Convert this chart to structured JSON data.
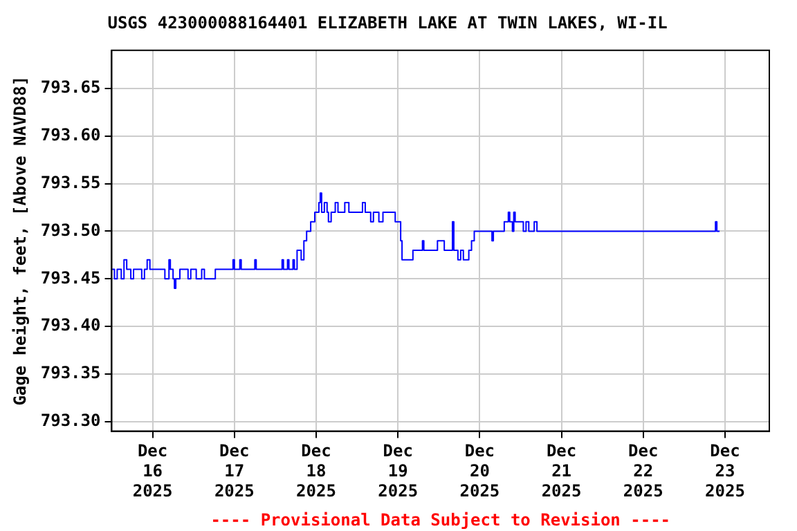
{
  "chart_data": {
    "type": "step",
    "title": "USGS 423000088164401 ELIZABETH LAKE AT TWIN LAKES, WI-IL",
    "ylabel": "Gage height, feet, [Above NAVD88]",
    "annotations": [
      "---- Provisional Data Subject to Revision ----"
    ],
    "x": [
      "2025-12-15T12:00",
      "2025-12-15T12:48",
      "2025-12-15T13:36",
      "2025-12-15T14:48",
      "2025-12-15T15:36",
      "2025-12-15T16:24",
      "2025-12-15T17:36",
      "2025-12-15T18:24",
      "2025-12-15T20:24",
      "2025-12-15T20:48",
      "2025-12-15T21:36",
      "2025-12-15T22:24",
      "2025-12-15T23:12",
      "2025-12-16T03:12",
      "2025-12-16T03:36",
      "2025-12-16T04:48",
      "2025-12-16T05:12",
      "2025-12-16T06:00",
      "2025-12-16T06:24",
      "2025-12-16T06:48",
      "2025-12-16T08:00",
      "2025-12-16T10:24",
      "2025-12-16T11:12",
      "2025-12-16T12:48",
      "2025-12-16T14:24",
      "2025-12-16T15:12",
      "2025-12-16T17:36",
      "2025-12-16T18:24",
      "2025-12-16T23:12",
      "2025-12-16T23:36",
      "2025-12-17T00:00",
      "2025-12-17T01:36",
      "2025-12-17T02:00",
      "2025-12-17T06:00",
      "2025-12-17T06:24",
      "2025-12-17T13:36",
      "2025-12-17T14:00",
      "2025-12-17T14:24",
      "2025-12-17T15:36",
      "2025-12-17T16:00",
      "2025-12-17T17:12",
      "2025-12-17T17:36",
      "2025-12-17T18:24",
      "2025-12-17T19:36",
      "2025-12-17T20:24",
      "2025-12-17T21:12",
      "2025-12-17T22:24",
      "2025-12-17T23:36",
      "2025-12-18T00:48",
      "2025-12-18T01:12",
      "2025-12-18T01:36",
      "2025-12-18T02:24",
      "2025-12-18T03:12",
      "2025-12-18T03:36",
      "2025-12-18T04:24",
      "2025-12-18T05:36",
      "2025-12-18T06:24",
      "2025-12-18T08:24",
      "2025-12-18T09:36",
      "2025-12-18T13:36",
      "2025-12-18T14:24",
      "2025-12-18T16:00",
      "2025-12-18T16:48",
      "2025-12-18T18:24",
      "2025-12-18T19:36",
      "2025-12-18T23:12",
      "2025-12-19T00:48",
      "2025-12-19T01:12",
      "2025-12-19T04:00",
      "2025-12-19T04:24",
      "2025-12-19T06:48",
      "2025-12-19T07:12",
      "2025-12-19T07:36",
      "2025-12-19T11:12",
      "2025-12-19T11:36",
      "2025-12-19T13:36",
      "2025-12-19T15:12",
      "2025-12-19T16:00",
      "2025-12-19T16:24",
      "2025-12-19T17:36",
      "2025-12-19T18:24",
      "2025-12-19T19:12",
      "2025-12-19T20:48",
      "2025-12-19T21:36",
      "2025-12-19T22:24",
      "2025-12-20T03:12",
      "2025-12-20T03:36",
      "2025-12-20T04:00",
      "2025-12-20T07:12",
      "2025-12-20T08:24",
      "2025-12-20T08:48",
      "2025-12-20T09:36",
      "2025-12-20T10:00",
      "2025-12-20T10:24",
      "2025-12-20T12:48",
      "2025-12-20T13:36",
      "2025-12-20T14:24",
      "2025-12-20T16:00",
      "2025-12-20T16:48",
      "2025-12-22T20:48",
      "2025-12-22T21:12",
      "2025-12-22T21:36",
      "2025-12-22T22:24"
    ],
    "series": [
      {
        "color": "#0000ff",
        "values": [
          793.46,
          793.45,
          793.46,
          793.45,
          793.47,
          793.46,
          793.45,
          793.46,
          793.46,
          793.45,
          793.46,
          793.47,
          793.46,
          793.46,
          793.45,
          793.47,
          793.46,
          793.45,
          793.44,
          793.45,
          793.46,
          793.45,
          793.46,
          793.45,
          793.46,
          793.45,
          793.45,
          793.46,
          793.46,
          793.47,
          793.46,
          793.47,
          793.46,
          793.47,
          793.46,
          793.46,
          793.47,
          793.46,
          793.47,
          793.46,
          793.47,
          793.46,
          793.48,
          793.47,
          793.49,
          793.5,
          793.51,
          793.52,
          793.53,
          793.54,
          793.52,
          793.53,
          793.52,
          793.51,
          793.52,
          793.53,
          793.52,
          793.53,
          793.52,
          793.53,
          793.52,
          793.51,
          793.52,
          793.51,
          793.52,
          793.51,
          793.49,
          793.47,
          793.47,
          793.48,
          793.48,
          793.49,
          793.48,
          793.48,
          793.49,
          793.48,
          793.48,
          793.51,
          793.48,
          793.47,
          793.48,
          793.47,
          793.48,
          793.49,
          793.5,
          793.5,
          793.49,
          793.5,
          793.51,
          793.52,
          793.51,
          793.5,
          793.52,
          793.51,
          793.5,
          793.51,
          793.5,
          793.51,
          793.5,
          793.5,
          793.51,
          793.5,
          793.5
        ]
      }
    ],
    "xlim": [
      "2025-12-15T12:00",
      "2025-12-23T13:00"
    ],
    "xticks": [
      {
        "value": "2025-12-16",
        "label": "Dec\n16\n2025"
      },
      {
        "value": "2025-12-17",
        "label": "Dec\n17\n2025"
      },
      {
        "value": "2025-12-18",
        "label": "Dec\n18\n2025"
      },
      {
        "value": "2025-12-19",
        "label": "Dec\n19\n2025"
      },
      {
        "value": "2025-12-20",
        "label": "Dec\n20\n2025"
      },
      {
        "value": "2025-12-21",
        "label": "Dec\n21\n2025"
      },
      {
        "value": "2025-12-22",
        "label": "Dec\n22\n2025"
      },
      {
        "value": "2025-12-23",
        "label": "Dec\n23\n2025"
      }
    ],
    "ylim": [
      793.29,
      793.69
    ],
    "yticks": [
      {
        "value": 793.3,
        "label": "793.30"
      },
      {
        "value": 793.35,
        "label": "793.35"
      },
      {
        "value": 793.4,
        "label": "793.40"
      },
      {
        "value": 793.45,
        "label": "793.45"
      },
      {
        "value": 793.5,
        "label": "793.50"
      },
      {
        "value": 793.55,
        "label": "793.55"
      },
      {
        "value": 793.6,
        "label": "793.60"
      },
      {
        "value": 793.65,
        "label": "793.65"
      }
    ],
    "grid": true,
    "legend": false,
    "marker": "none",
    "line_style": "solid"
  }
}
